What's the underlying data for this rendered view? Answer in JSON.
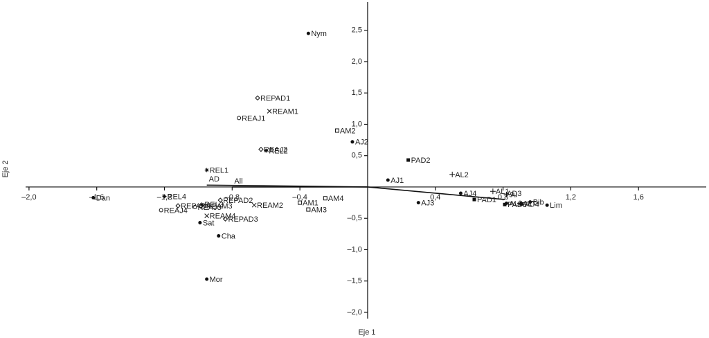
{
  "chart_data": {
    "type": "scatter",
    "xlabel": "Eje 1",
    "ylabel": "Eje 2",
    "xlim": [
      -2.02,
      2.0
    ],
    "ylim": [
      -2.1,
      2.95
    ],
    "xticks": [
      {
        "value": -2.0,
        "label": "–2,0"
      },
      {
        "value": -1.6,
        "label": "–1,6"
      },
      {
        "value": -1.2,
        "label": "–1,2"
      },
      {
        "value": -0.8,
        "label": "–0,8"
      },
      {
        "value": -0.4,
        "label": "–0,4"
      },
      {
        "value": 0.4,
        "label": "0,4"
      },
      {
        "value": 0.8,
        "label": "0,8"
      },
      {
        "value": 1.2,
        "label": "1,2"
      },
      {
        "value": 1.6,
        "label": "1,6"
      }
    ],
    "yticks": [
      {
        "value": 2.5,
        "label": "2,5"
      },
      {
        "value": 2.0,
        "label": "2,0"
      },
      {
        "value": 1.5,
        "label": "1,5"
      },
      {
        "value": 1.0,
        "label": "1,0"
      },
      {
        "value": 0.5,
        "label": "0,5"
      },
      {
        "value": -0.5,
        "label": "–0,5"
      },
      {
        "value": -1.0,
        "label": "–1,0"
      },
      {
        "value": -1.5,
        "label": "–1,5"
      },
      {
        "value": -2.0,
        "label": "–2,0"
      }
    ],
    "series": [
      {
        "marker": "dot",
        "color": "#111111",
        "labels": [
          "Nym",
          "AJ2",
          "AJ1",
          "AJ3",
          "AJ4",
          "Sat",
          "Cha",
          "Mor",
          "Lim",
          "Bib",
          "AL4",
          "Dan"
        ],
        "x": [
          -0.35,
          -0.09,
          0.12,
          0.3,
          0.55,
          -0.99,
          -0.88,
          -0.95,
          1.06,
          0.96,
          0.82,
          -1.62
        ],
        "y": [
          2.45,
          0.72,
          0.11,
          -0.25,
          -0.1,
          -0.57,
          -0.78,
          -1.47,
          -0.29,
          -0.24,
          -0.26,
          -0.17
        ]
      },
      {
        "marker": "diamond",
        "color": "#111111",
        "labels": [
          "REPAD1",
          "REAJ2",
          "REPAD3",
          "REPAD2",
          "REPAD4"
        ],
        "x": [
          -0.65,
          -0.63,
          -0.84,
          -0.87,
          -1.12
        ],
        "y": [
          1.42,
          0.6,
          -0.51,
          -0.21,
          -0.3
        ]
      },
      {
        "marker": "cross",
        "color": "#111111",
        "labels": [
          "REAM1",
          "REAM2",
          "REAM3",
          "REAM4"
        ],
        "x": [
          -0.58,
          -0.67,
          -0.97,
          -0.95
        ],
        "y": [
          1.21,
          -0.29,
          -0.3,
          -0.46
        ]
      },
      {
        "marker": "circle",
        "color": "#111111",
        "labels": [
          "REAJ1",
          "REAJ4",
          "REAJ3"
        ],
        "x": [
          -0.76,
          -1.22,
          -1.02
        ],
        "y": [
          1.1,
          -0.37,
          -0.32
        ]
      },
      {
        "marker": "square",
        "color": "#111111",
        "labels": [
          "AM2",
          "AM1",
          "AM3",
          "AM4"
        ],
        "x": [
          -0.18,
          -0.4,
          -0.35,
          -0.25
        ],
        "y": [
          0.9,
          -0.25,
          -0.36,
          -0.18
        ]
      },
      {
        "marker": "star",
        "color": "#111111",
        "labels": [
          "REL1",
          "REL2",
          "REL4",
          "REL3"
        ],
        "x": [
          -0.95,
          -0.6,
          -1.2,
          -0.98
        ],
        "y": [
          0.27,
          0.58,
          -0.15,
          -0.28
        ]
      },
      {
        "marker": "fsquare",
        "color": "#111111",
        "labels": [
          "PAD2",
          "PAD1",
          "PAD3",
          "AD4"
        ],
        "x": [
          0.24,
          0.63,
          0.81,
          0.91
        ],
        "y": [
          0.43,
          -0.2,
          -0.28,
          -0.27
        ]
      },
      {
        "marker": "plus",
        "color": "#111111",
        "labels": [
          "AL2",
          "AL1",
          "ALT",
          "Ju"
        ],
        "x": [
          0.5,
          0.74,
          0.9,
          0.82
        ],
        "y": [
          0.2,
          -0.07,
          -0.26,
          -0.12
        ]
      }
    ],
    "vectors": {
      "labels": [
        "AD",
        "All",
        "AD3"
      ],
      "x": [
        -0.95,
        -0.8,
        0.81
      ],
      "y": [
        0.03,
        0.0,
        -0.2
      ]
    }
  }
}
